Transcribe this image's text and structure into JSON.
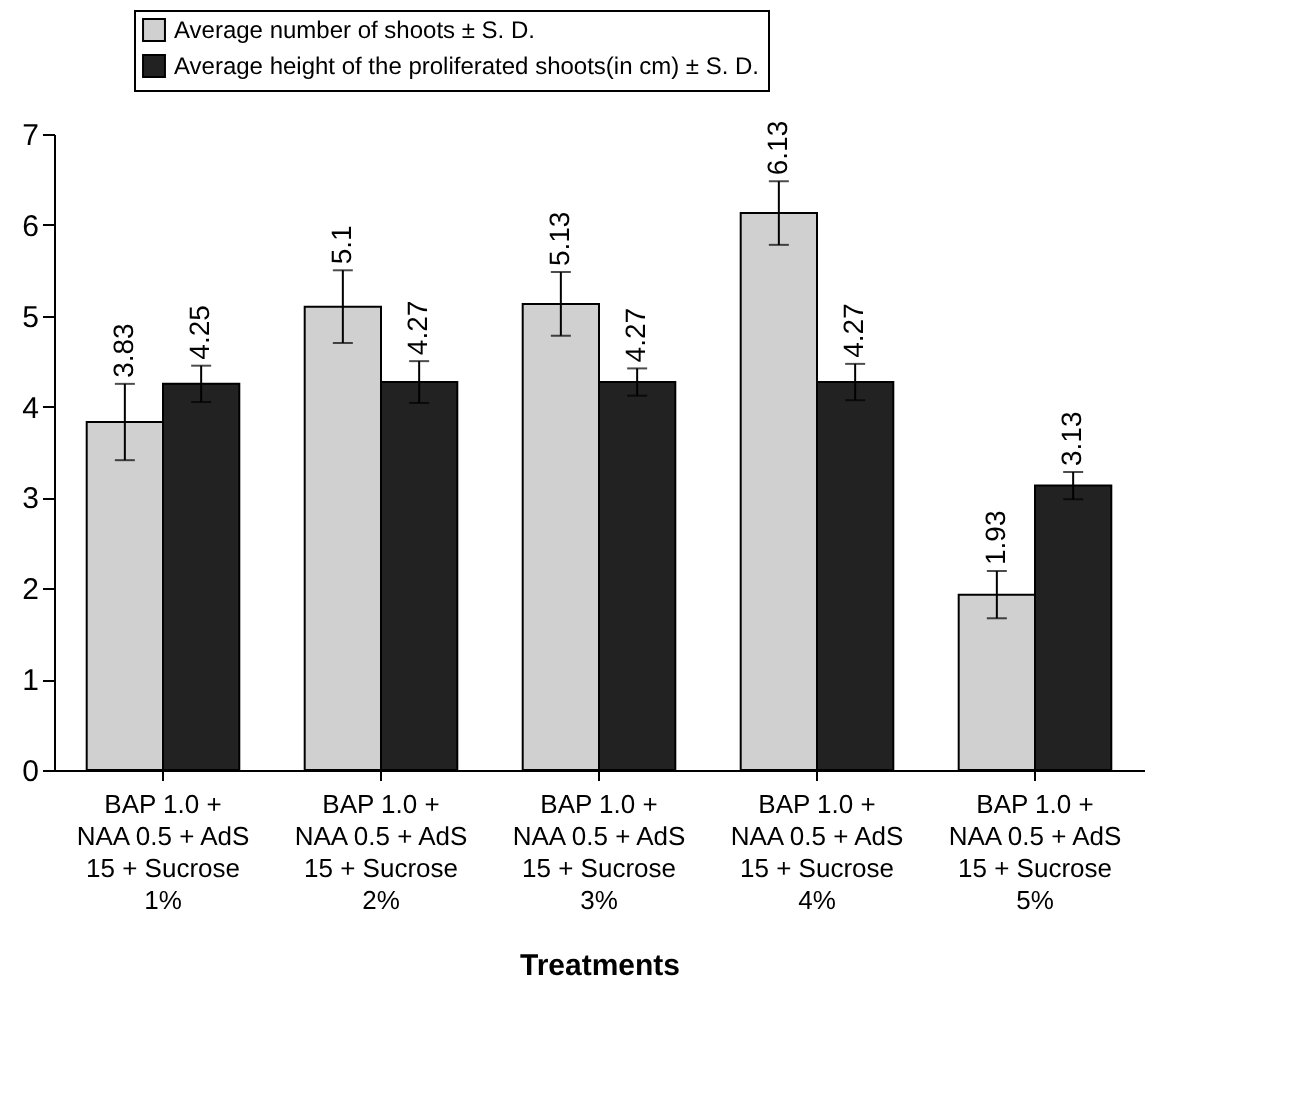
{
  "chart_data": {
    "type": "bar",
    "xlabel": "Treatments",
    "categories": [
      "BAP 1.0 +\nNAA 0.5 + AdS\n15 + Sucrose\n1%",
      "BAP 1.0 +\nNAA 0.5 + AdS\n15 + Sucrose\n2%",
      "BAP 1.0 +\nNAA 0.5 + AdS\n15 + Sucrose\n3%",
      "BAP 1.0 +\nNAA 0.5 + AdS\n15 + Sucrose\n4%",
      "BAP 1.0 +\nNAA 0.5 + AdS\n15 + Sucrose\n5%"
    ],
    "series": [
      {
        "name": "Average number of shoots ± S. D.",
        "color": "#d0d0d0",
        "values": [
          3.83,
          5.1,
          5.13,
          6.13,
          1.93
        ],
        "errors": [
          0.42,
          0.4,
          0.35,
          0.35,
          0.26
        ]
      },
      {
        "name": "Average height of the proliferated shoots(in cm) ± S. D.",
        "color": "#222222",
        "values": [
          4.25,
          4.27,
          4.27,
          4.27,
          3.13
        ],
        "errors": [
          0.2,
          0.23,
          0.15,
          0.2,
          0.15
        ]
      }
    ],
    "ylim": [
      0,
      7
    ],
    "yticks": [
      0,
      1,
      2,
      3,
      4,
      5,
      6,
      7
    ],
    "grid": false,
    "legend": "top left",
    "data_labels": true
  }
}
